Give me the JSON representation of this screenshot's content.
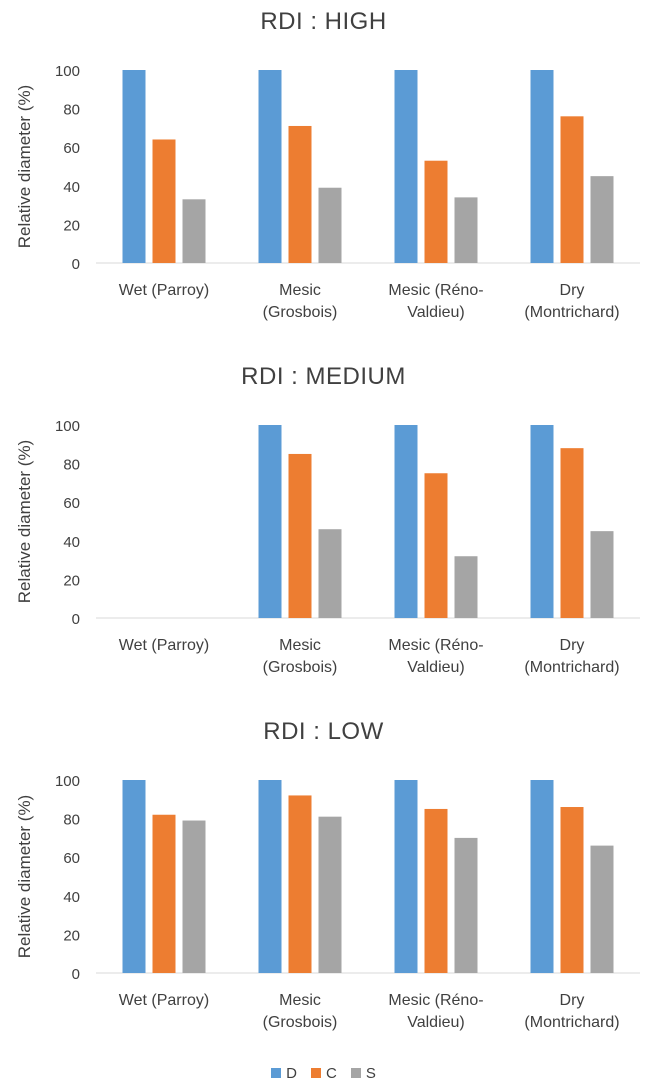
{
  "legend": [
    {
      "label": "D",
      "color": "#5B9BD5"
    },
    {
      "label": "C",
      "color": "#ED7D31"
    },
    {
      "label": "S",
      "color": "#A5A5A5"
    }
  ],
  "chart_data": [
    {
      "type": "bar",
      "title": "RDI : HIGH",
      "ylabel": "Relative diameter (%)",
      "ylim": [
        0,
        100
      ],
      "yticks": [
        0,
        20,
        40,
        60,
        80,
        100
      ],
      "categories": [
        [
          "Wet (Parroy)"
        ],
        [
          "Mesic",
          "(Grosbois)"
        ],
        [
          "Mesic (Réno-",
          "Valdieu)"
        ],
        [
          "Dry",
          "(Montrichard)"
        ]
      ],
      "series": [
        {
          "name": "D",
          "color": "#5B9BD5",
          "values": [
            100,
            100,
            100,
            100
          ]
        },
        {
          "name": "C",
          "color": "#ED7D31",
          "values": [
            64,
            71,
            53,
            76
          ]
        },
        {
          "name": "S",
          "color": "#A5A5A5",
          "values": [
            33,
            39,
            34,
            45
          ]
        }
      ],
      "grid": false
    },
    {
      "type": "bar",
      "title": "RDI : MEDIUM",
      "ylabel": "Relative diameter (%)",
      "ylim": [
        0,
        100
      ],
      "yticks": [
        0,
        20,
        40,
        60,
        80,
        100
      ],
      "categories": [
        [
          "Wet (Parroy)"
        ],
        [
          "Mesic",
          "(Grosbois)"
        ],
        [
          "Mesic (Réno-",
          "Valdieu)"
        ],
        [
          "Dry",
          "(Montrichard)"
        ]
      ],
      "series": [
        {
          "name": "D",
          "color": "#5B9BD5",
          "values": [
            null,
            100,
            100,
            100
          ]
        },
        {
          "name": "C",
          "color": "#ED7D31",
          "values": [
            null,
            85,
            75,
            88
          ]
        },
        {
          "name": "S",
          "color": "#A5A5A5",
          "values": [
            null,
            46,
            32,
            45
          ]
        }
      ],
      "grid": false
    },
    {
      "type": "bar",
      "title": "RDI : LOW",
      "ylabel": "Relative diameter (%)",
      "ylim": [
        0,
        100
      ],
      "yticks": [
        0,
        20,
        40,
        60,
        80,
        100
      ],
      "categories": [
        [
          "Wet (Parroy)"
        ],
        [
          "Mesic",
          "(Grosbois)"
        ],
        [
          "Mesic (Réno-",
          "Valdieu)"
        ],
        [
          "Dry",
          "(Montrichard)"
        ]
      ],
      "series": [
        {
          "name": "D",
          "color": "#5B9BD5",
          "values": [
            100,
            100,
            100,
            100
          ]
        },
        {
          "name": "C",
          "color": "#ED7D31",
          "values": [
            82,
            92,
            85,
            86
          ]
        },
        {
          "name": "S",
          "color": "#A5A5A5",
          "values": [
            79,
            81,
            70,
            66
          ]
        }
      ],
      "grid": false
    }
  ]
}
